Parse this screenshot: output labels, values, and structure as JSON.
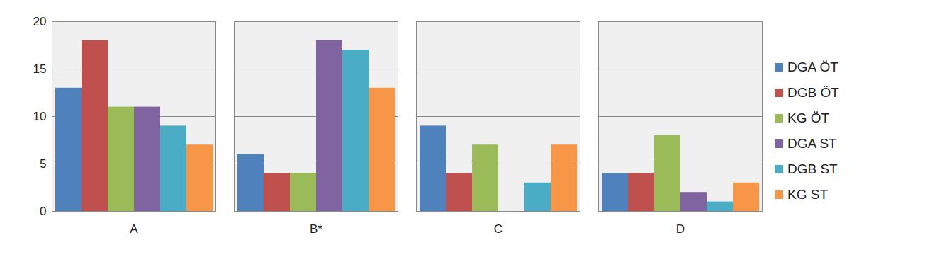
{
  "chart_data": {
    "type": "bar",
    "categories": [
      "A",
      "B*",
      "C",
      "D"
    ],
    "series": [
      {
        "name": "DGA ÖT",
        "color": "#4f81bd",
        "values": [
          13,
          6,
          9,
          4
        ]
      },
      {
        "name": "DGB ÖT",
        "color": "#c0504d",
        "values": [
          18,
          4,
          4,
          4
        ]
      },
      {
        "name": "KG ÖT",
        "color": "#9bbb59",
        "values": [
          11,
          4,
          7,
          8
        ]
      },
      {
        "name": "DGA ST",
        "color": "#8064a2",
        "values": [
          11,
          18,
          0,
          2
        ]
      },
      {
        "name": "DGB ST",
        "color": "#4bacc6",
        "values": [
          9,
          17,
          3,
          1
        ]
      },
      {
        "name": "KG ST",
        "color": "#f79646",
        "values": [
          7,
          13,
          7,
          3
        ]
      }
    ],
    "ylim": [
      0,
      20
    ],
    "yticks": [
      0,
      5,
      10,
      15,
      20
    ],
    "grid": true,
    "legend": "right"
  }
}
